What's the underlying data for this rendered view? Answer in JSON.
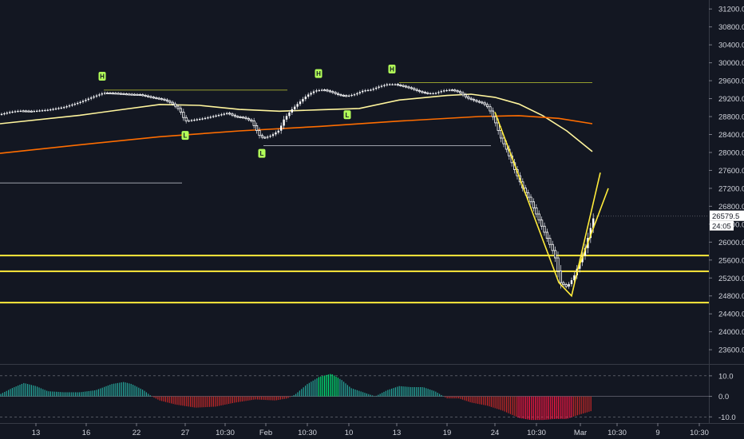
{
  "chart_data": [
    {
      "type": "candlestick",
      "title": "",
      "price_axis": {
        "ticks": [
          "31200.0",
          "30800.0",
          "30400.0",
          "30000.0",
          "29600.0",
          "29200.0",
          "28800.0",
          "28400.0",
          "28000.0",
          "27600.0",
          "27200.0",
          "26800.0",
          "26400.0",
          "26000.0",
          "25600.0",
          "25200.0",
          "24800.0",
          "24400.0",
          "24000.0",
          "23600.0"
        ],
        "range": [
          23300,
          31400
        ],
        "last_price_label": "26579.5",
        "countdown_label": "24:05"
      },
      "time_axis": {
        "ticks": [
          "13",
          "16",
          "22",
          "27",
          "10:30",
          "Feb",
          "10:30",
          "10",
          "13",
          "19",
          "24",
          "10:30",
          "Mar",
          "10:30",
          "9",
          "10:30"
        ]
      },
      "candle_close_path": [
        [
          0,
          28850
        ],
        [
          12,
          28900
        ],
        [
          24,
          28930
        ],
        [
          40,
          28920
        ],
        [
          60,
          28950
        ],
        [
          80,
          29010
        ],
        [
          100,
          29120
        ],
        [
          115,
          29230
        ],
        [
          130,
          29330
        ],
        [
          145,
          29320
        ],
        [
          160,
          29300
        ],
        [
          175,
          29290
        ],
        [
          190,
          29230
        ],
        [
          205,
          29180
        ],
        [
          215,
          29100
        ],
        [
          225,
          28950
        ],
        [
          232,
          28700
        ],
        [
          240,
          28720
        ],
        [
          255,
          28760
        ],
        [
          270,
          28820
        ],
        [
          285,
          28880
        ],
        [
          295,
          28800
        ],
        [
          305,
          28780
        ],
        [
          315,
          28700
        ],
        [
          325,
          28380
        ],
        [
          330,
          28320
        ],
        [
          340,
          28380
        ],
        [
          350,
          28500
        ],
        [
          355,
          28720
        ],
        [
          365,
          28950
        ],
        [
          375,
          29120
        ],
        [
          385,
          29280
        ],
        [
          395,
          29380
        ],
        [
          405,
          29400
        ],
        [
          415,
          29350
        ],
        [
          425,
          29280
        ],
        [
          435,
          29260
        ],
        [
          445,
          29300
        ],
        [
          455,
          29380
        ],
        [
          465,
          29400
        ],
        [
          475,
          29470
        ],
        [
          485,
          29520
        ],
        [
          495,
          29520
        ],
        [
          505,
          29480
        ],
        [
          515,
          29430
        ],
        [
          525,
          29360
        ],
        [
          535,
          29320
        ],
        [
          545,
          29320
        ],
        [
          555,
          29380
        ],
        [
          565,
          29400
        ],
        [
          575,
          29350
        ],
        [
          585,
          29220
        ],
        [
          595,
          29150
        ],
        [
          605,
          29100
        ],
        [
          612,
          29000
        ],
        [
          620,
          28700
        ],
        [
          628,
          28300
        ],
        [
          635,
          28050
        ],
        [
          645,
          27600
        ],
        [
          655,
          27200
        ],
        [
          665,
          26900
        ],
        [
          675,
          26500
        ],
        [
          685,
          26100
        ],
        [
          695,
          25700
        ],
        [
          702,
          25100
        ],
        [
          710,
          25000
        ],
        [
          718,
          25200
        ],
        [
          725,
          25500
        ],
        [
          732,
          25800
        ],
        [
          738,
          26200
        ],
        [
          744,
          26580
        ]
      ],
      "moving_averages": [
        {
          "name": "",
          "color": "#fff59d",
          "points": [
            [
              0,
              28640
            ],
            [
              100,
              28830
            ],
            [
              200,
              29070
            ],
            [
              250,
              29050
            ],
            [
              300,
              28960
            ],
            [
              350,
              28920
            ],
            [
              400,
              28950
            ],
            [
              450,
              28980
            ],
            [
              500,
              29170
            ],
            [
              560,
              29270
            ],
            [
              590,
              29300
            ],
            [
              620,
              29230
            ],
            [
              650,
              29080
            ],
            [
              680,
              28820
            ],
            [
              710,
              28480
            ],
            [
              742,
              28020
            ]
          ]
        },
        {
          "name": "",
          "color": "#ff6d00",
          "points": [
            [
              0,
              27980
            ],
            [
              100,
              28170
            ],
            [
              200,
              28350
            ],
            [
              300,
              28480
            ],
            [
              400,
              28580
            ],
            [
              500,
              28700
            ],
            [
              600,
              28800
            ],
            [
              650,
              28820
            ],
            [
              700,
              28760
            ],
            [
              742,
              28640
            ]
          ]
        }
      ],
      "horizontal_levels": [
        {
          "price": 25700,
          "color": "#ffeb3b"
        },
        {
          "price": 25350,
          "color": "#ffeb3b"
        },
        {
          "price": 24650,
          "color": "#ffeb3b"
        }
      ],
      "resistance_lines": [
        {
          "price": 29390,
          "x_from": 130,
          "x_to": 360,
          "color": "#c0ca33"
        },
        {
          "price": 29560,
          "x_from": 500,
          "x_to": 742,
          "color": "#c0ca33"
        },
        {
          "price": 28150,
          "x_from": 330,
          "x_to": 615,
          "color": "#b2b5be"
        },
        {
          "price": 27320,
          "x_from": 0,
          "x_to": 228,
          "color": "#b2b5be"
        }
      ],
      "v_pattern": [
        [
          620,
          28900
        ],
        [
          700,
          25100
        ],
        [
          716,
          24800
        ],
        [
          752,
          27550
        ]
      ],
      "v_pattern_upper": [
        [
          724,
          25400
        ],
        [
          762,
          27200
        ]
      ],
      "swing_markers": [
        {
          "label": "H",
          "x": 128,
          "price": 29700
        },
        {
          "label": "L",
          "x": 232,
          "price": 28380
        },
        {
          "label": "L",
          "x": 328,
          "price": 27980
        },
        {
          "label": "H",
          "x": 399,
          "price": 29760
        },
        {
          "label": "L",
          "x": 435,
          "price": 28840
        },
        {
          "label": "H",
          "x": 491,
          "price": 29860
        }
      ]
    },
    {
      "type": "histogram",
      "title": "",
      "axis": {
        "ticks": [
          "10.0",
          "0.0",
          "-10.0"
        ],
        "range": [
          -13,
          15
        ],
        "dashed_levels": [
          10,
          -10
        ]
      },
      "curve": [
        [
          0,
          1
        ],
        [
          15,
          4
        ],
        [
          30,
          6.5
        ],
        [
          45,
          5
        ],
        [
          60,
          2.5
        ],
        [
          80,
          2
        ],
        [
          100,
          2
        ],
        [
          120,
          3
        ],
        [
          140,
          6
        ],
        [
          155,
          7
        ],
        [
          165,
          6
        ],
        [
          180,
          3
        ],
        [
          190,
          0
        ],
        [
          200,
          -2
        ],
        [
          220,
          -4
        ],
        [
          245,
          -5.5
        ],
        [
          270,
          -5
        ],
        [
          295,
          -3
        ],
        [
          320,
          -1.5
        ],
        [
          345,
          -2
        ],
        [
          360,
          -1
        ],
        [
          370,
          1
        ],
        [
          385,
          6
        ],
        [
          400,
          9.5
        ],
        [
          415,
          11
        ],
        [
          428,
          8
        ],
        [
          440,
          4
        ],
        [
          455,
          2
        ],
        [
          470,
          0
        ],
        [
          485,
          3
        ],
        [
          500,
          5
        ],
        [
          515,
          4.5
        ],
        [
          530,
          4.5
        ],
        [
          545,
          2.5
        ],
        [
          560,
          -1
        ],
        [
          575,
          -1
        ],
        [
          590,
          -3
        ],
        [
          610,
          -4.5
        ],
        [
          630,
          -7
        ],
        [
          650,
          -10.5
        ],
        [
          665,
          -11.5
        ],
        [
          680,
          -11.5
        ],
        [
          695,
          -11
        ],
        [
          710,
          -11
        ],
        [
          725,
          -9
        ],
        [
          742,
          -7
        ]
      ],
      "colors": {
        "positive": "#26a69a",
        "positive_strong": "#00e676",
        "negative": "#c62828",
        "negative_strong": "#ff1744"
      }
    }
  ]
}
